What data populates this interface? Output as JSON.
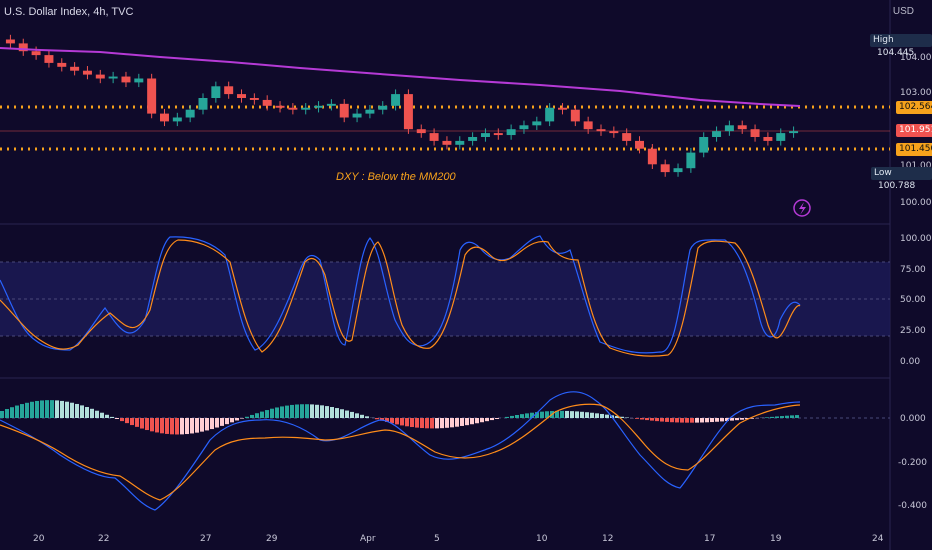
{
  "header": {
    "symbol": "U.S. Dollar Index, 4h, TVC",
    "currency": "USD"
  },
  "annotation": "DXY : Below the MM200",
  "price_scale": {
    "labels": [
      "104.000",
      "103.000",
      "101.000",
      "100.000"
    ],
    "high_label": "High",
    "high_value": "104.445",
    "low_label": "Low",
    "low_value": "100.788",
    "resistance": "102.564",
    "current": "101.951",
    "support": "101.450"
  },
  "stoch_scale": [
    "100.00",
    "75.00",
    "50.00",
    "25.00",
    "0.00"
  ],
  "macd_scale": [
    "0.000",
    "-0.200",
    "-0.400"
  ],
  "dates": [
    "20",
    "22",
    "27",
    "29",
    "Apr",
    "5",
    "10",
    "12",
    "17",
    "19",
    "24"
  ],
  "colors": {
    "background": "#0f0a2a",
    "up": "#26a69a",
    "down": "#ef5350",
    "ma200": "#b53ad6",
    "levels": "#f7a21c",
    "stoch_k": "#2962ff",
    "stoch_d": "#ff8c1a",
    "hist_up_strong": "#26a69a",
    "hist_up_weak": "#b2dfdb",
    "hist_down_strong": "#ef5350",
    "hist_down_weak": "#ffcdd2"
  },
  "icons": {
    "alert": "lightning-icon"
  },
  "chart_data": {
    "type": "candlestick",
    "title": "U.S. Dollar Index, 4h, TVC",
    "ylim": [
      99.8,
      104.8
    ],
    "ma200_endpoints": [
      104.4,
      102.56
    ],
    "horizontal_levels": [
      102.564,
      101.45
    ],
    "current_price": 101.951,
    "high": 104.445,
    "low": 100.788,
    "close_path": [
      104.2,
      104.0,
      103.9,
      103.7,
      103.6,
      103.5,
      103.4,
      103.3,
      103.35,
      103.2,
      103.3,
      102.4,
      102.2,
      102.3,
      102.5,
      102.8,
      103.1,
      102.9,
      102.8,
      102.75,
      102.6,
      102.55,
      102.5,
      102.55,
      102.6,
      102.65,
      102.3,
      102.4,
      102.5,
      102.6,
      102.9,
      102.0,
      101.9,
      101.7,
      101.6,
      101.7,
      101.8,
      101.9,
      101.85,
      102.0,
      102.1,
      102.2,
      102.55,
      102.5,
      102.2,
      102.0,
      101.95,
      101.9,
      101.7,
      101.5,
      101.1,
      100.9,
      101.0,
      101.4,
      101.8,
      101.95,
      102.1,
      102.0,
      101.8,
      101.7,
      101.9,
      101.95
    ],
    "stochastic": {
      "k_range": [
        0,
        100
      ],
      "overbought": 80,
      "oversold": 20
    },
    "macd": {
      "ylim": [
        -0.45,
        0.15
      ]
    }
  }
}
